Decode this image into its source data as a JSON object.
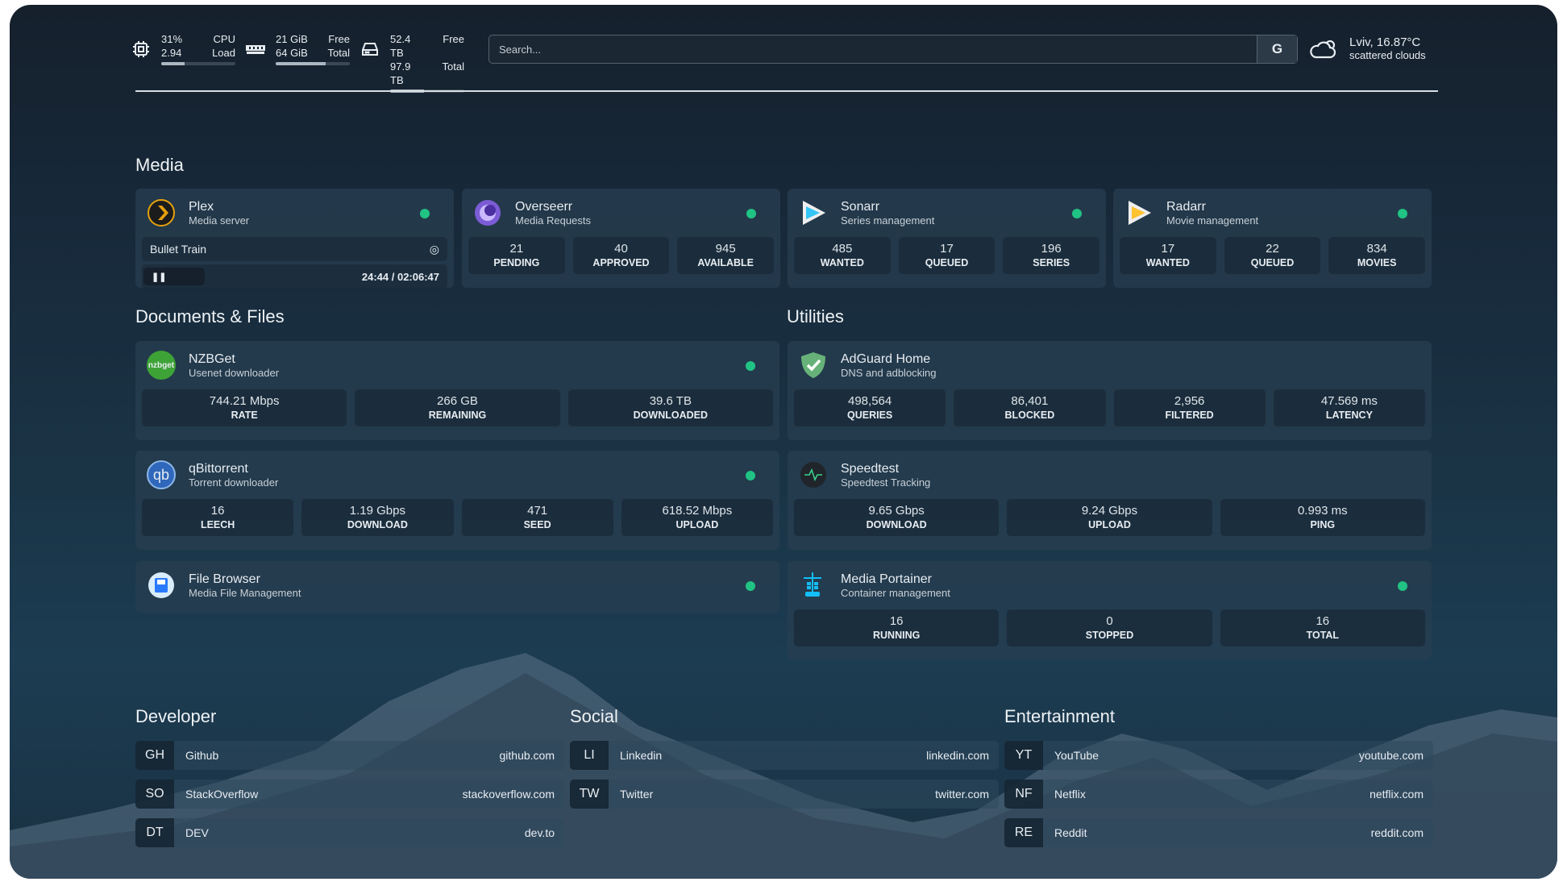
{
  "topbar": {
    "cpu": {
      "icon": "cpu-icon",
      "v1": "31%",
      "l1": "CPU",
      "v2": "2.94",
      "l2": "Load",
      "usage_percent": 31
    },
    "memory": {
      "icon": "memory-icon",
      "v1": "21 GiB",
      "l1": "Free",
      "v2": "64 GiB",
      "l2": "Total",
      "usage_percent": 67
    },
    "disk": {
      "icon": "hard-drive-icon",
      "v1": "52.4 TB",
      "l1": "Free",
      "v2": "97.9 TB",
      "l2": "Total",
      "usage_percent": 46
    },
    "search": {
      "placeholder": "Search...",
      "button": "G"
    },
    "weather": {
      "icon": "cloud-sun-icon",
      "location": "Lviv, 16.87°C",
      "description": "scattered clouds"
    }
  },
  "sections": {
    "media": "Media",
    "documents": "Documents & Files",
    "utilities": "Utilities",
    "developer": "Developer",
    "social": "Social",
    "entertainment": "Entertainment"
  },
  "cards": [
    {
      "id": "plex",
      "title": "Plex",
      "sub": "Media server",
      "status": "online",
      "now_playing": {
        "title": "Bullet Train",
        "time": "24:44 / 02:06:47",
        "progress_percent": 19.5,
        "state": "paused"
      }
    },
    {
      "id": "overseerr",
      "title": "Overseerr",
      "sub": "Media Requests",
      "status": "online",
      "stats": [
        {
          "v": "21",
          "l": "PENDING"
        },
        {
          "v": "40",
          "l": "APPROVED"
        },
        {
          "v": "945",
          "l": "AVAILABLE"
        }
      ]
    },
    {
      "id": "sonarr",
      "title": "Sonarr",
      "sub": "Series management",
      "status": "online",
      "stats": [
        {
          "v": "485",
          "l": "WANTED"
        },
        {
          "v": "17",
          "l": "QUEUED"
        },
        {
          "v": "196",
          "l": "SERIES"
        }
      ]
    },
    {
      "id": "radarr",
      "title": "Radarr",
      "sub": "Movie management",
      "status": "online",
      "stats": [
        {
          "v": "17",
          "l": "WANTED"
        },
        {
          "v": "22",
          "l": "QUEUED"
        },
        {
          "v": "834",
          "l": "MOVIES"
        }
      ]
    },
    {
      "id": "nzbget",
      "title": "NZBGet",
      "sub": "Usenet downloader",
      "status": "online",
      "logo_text": "nzbget",
      "stats": [
        {
          "v": "744.21 Mbps",
          "l": "RATE"
        },
        {
          "v": "266 GB",
          "l": "REMAINING"
        },
        {
          "v": "39.6 TB",
          "l": "DOWNLOADED"
        }
      ]
    },
    {
      "id": "qbittorrent",
      "title": "qBittorrent",
      "sub": "Torrent downloader",
      "status": "online",
      "logo_text": "qb",
      "stats": [
        {
          "v": "16",
          "l": "LEECH"
        },
        {
          "v": "1.19 Gbps",
          "l": "DOWNLOAD"
        },
        {
          "v": "471",
          "l": "SEED"
        },
        {
          "v": "618.52 Mbps",
          "l": "UPLOAD"
        }
      ]
    },
    {
      "id": "filebrowser",
      "title": "File Browser",
      "sub": "Media File Management",
      "status": "online"
    },
    {
      "id": "adguard",
      "title": "AdGuard Home",
      "sub": "DNS and adblocking",
      "stats": [
        {
          "v": "498,564",
          "l": "QUERIES"
        },
        {
          "v": "86,401",
          "l": "BLOCKED"
        },
        {
          "v": "2,956",
          "l": "FILTERED"
        },
        {
          "v": "47.569 ms",
          "l": "LATENCY"
        }
      ]
    },
    {
      "id": "speedtest",
      "title": "Speedtest",
      "sub": "Speedtest Tracking",
      "stats": [
        {
          "v": "9.65 Gbps",
          "l": "DOWNLOAD"
        },
        {
          "v": "9.24 Gbps",
          "l": "UPLOAD"
        },
        {
          "v": "0.993 ms",
          "l": "PING"
        }
      ]
    },
    {
      "id": "portainer",
      "title": "Media Portainer",
      "sub": "Container management",
      "status": "online",
      "stats": [
        {
          "v": "16",
          "l": "RUNNING"
        },
        {
          "v": "0",
          "l": "STOPPED"
        },
        {
          "v": "16",
          "l": "TOTAL"
        }
      ]
    }
  ],
  "bookmarks": {
    "developer": [
      {
        "abbr": "GH",
        "name": "Github",
        "url": "github.com"
      },
      {
        "abbr": "SO",
        "name": "StackOverflow",
        "url": "stackoverflow.com"
      },
      {
        "abbr": "DT",
        "name": "DEV",
        "url": "dev.to"
      }
    ],
    "social": [
      {
        "abbr": "LI",
        "name": "Linkedin",
        "url": "linkedin.com"
      },
      {
        "abbr": "TW",
        "name": "Twitter",
        "url": "twitter.com"
      }
    ],
    "entertainment": [
      {
        "abbr": "YT",
        "name": "YouTube",
        "url": "youtube.com"
      },
      {
        "abbr": "NF",
        "name": "Netflix",
        "url": "netflix.com"
      },
      {
        "abbr": "RE",
        "name": "Reddit",
        "url": "reddit.com"
      }
    ]
  },
  "colors": {
    "status_online": "#20c384",
    "plex": "#e5a00d",
    "overseerr": "#7b5cd6",
    "sonarr": "#35c5f4",
    "radarr": "#ffc230",
    "adguard": "#67b279"
  }
}
